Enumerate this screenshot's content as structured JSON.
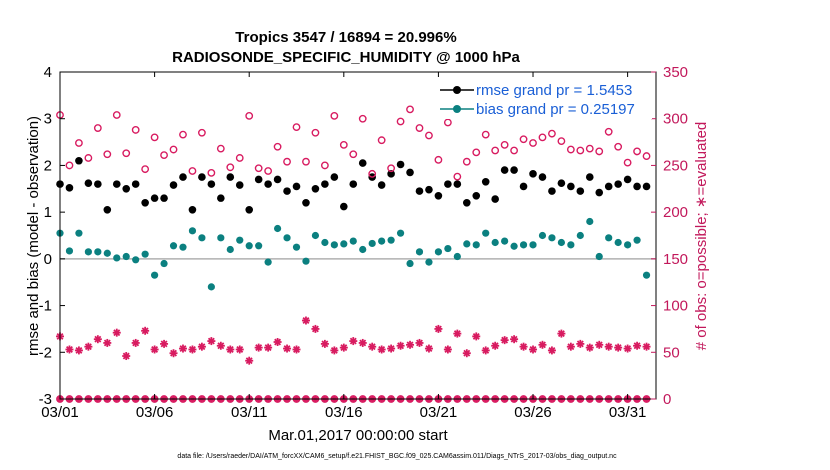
{
  "chart_data": {
    "type": "scatter",
    "title_line1": "Tropics 3547 / 16894 = 20.996%",
    "title_line2": "RADIOSONDE_SPECIFIC_HUMIDITY @ 1000 hPa",
    "xlabel": "Mar.01,2017 00:00:00 start",
    "ylabel_left": "rmse and bias (model - observation)",
    "ylabel_right": "# of obs: o=possible; ∗=evaluated",
    "xlim": [
      0,
      31.5
    ],
    "ylim_left": [
      -3,
      4
    ],
    "ylim_right": [
      0,
      350
    ],
    "x_ticks": [
      0,
      5,
      10,
      15,
      20,
      25,
      30
    ],
    "x_tick_labels": [
      "03/01",
      "03/06",
      "03/11",
      "03/16",
      "03/21",
      "03/26",
      "03/31"
    ],
    "y_left_ticks": [
      -3,
      -2,
      -1,
      0,
      1,
      2,
      3,
      4
    ],
    "y_left_tick_labels": [
      "-3",
      "-2",
      "-1",
      "0",
      "1",
      "2",
      "3",
      "4"
    ],
    "y_right_ticks": [
      0,
      50,
      100,
      150,
      200,
      250,
      300,
      350
    ],
    "y_right_tick_labels": [
      "0",
      "50",
      "100",
      "150",
      "200",
      "250",
      "300",
      "350"
    ],
    "footer": "data file: /Users/raeder/DAI/ATM_forcXX/CAM6_setup/f.e21.FHIST_BGC.f09_025.CAM6assim.011/Diags_NTrS_2017-03/obs_diag_output.nc",
    "legend": [
      {
        "label": "rmse grand pr = 1.5453",
        "color": "#000000"
      },
      {
        "label": "bias grand pr = 0.25197",
        "color": "#0b8080"
      }
    ],
    "colors": {
      "rmse": "#000000",
      "bias": "#0b8080",
      "obs": "#d81b60",
      "zero_line": "#b0b0b0"
    },
    "x": [
      0,
      0.5,
      1,
      1.5,
      2,
      2.5,
      3,
      3.5,
      4,
      4.5,
      5,
      5.5,
      6,
      6.5,
      7,
      7.5,
      8,
      8.5,
      9,
      9.5,
      10,
      10.5,
      11,
      11.5,
      12,
      12.5,
      13,
      13.5,
      14,
      14.5,
      15,
      15.5,
      16,
      16.5,
      17,
      17.5,
      18,
      18.5,
      19,
      19.5,
      20,
      20.5,
      21,
      21.5,
      22,
      22.5,
      23,
      23.5,
      24,
      24.5,
      25,
      25.5,
      26,
      26.5,
      27,
      27.5,
      28,
      28.5,
      29,
      29.5,
      30,
      30.5,
      31
    ],
    "series": [
      {
        "name": "rmse",
        "marker": "filled-circle",
        "values": [
          1.6,
          1.52,
          2.1,
          1.62,
          1.6,
          1.05,
          1.6,
          1.5,
          1.6,
          1.2,
          1.3,
          1.3,
          1.58,
          1.75,
          1.05,
          1.75,
          1.6,
          1.3,
          1.75,
          1.58,
          1.05,
          1.7,
          1.6,
          1.7,
          1.45,
          1.55,
          1.2,
          1.5,
          1.6,
          1.75,
          1.12,
          1.6,
          2.05,
          1.75,
          1.58,
          1.82,
          2.02,
          1.85,
          1.45,
          1.48,
          1.35,
          1.6,
          1.6,
          1.2,
          1.35,
          1.65,
          1.28,
          1.9,
          1.9,
          1.55,
          1.82,
          1.75,
          1.45,
          1.62,
          1.55,
          1.45,
          1.75,
          1.42,
          1.55,
          1.6,
          1.7,
          1.55,
          1.55
        ]
      },
      {
        "name": "bias",
        "marker": "filled-circle",
        "values": [
          0.55,
          0.17,
          0.55,
          0.15,
          0.15,
          0.12,
          0.02,
          0.05,
          -0.02,
          0.1,
          -0.35,
          -0.1,
          0.28,
          0.25,
          0.6,
          0.45,
          -0.6,
          0.45,
          0.2,
          0.4,
          0.28,
          0.28,
          -0.07,
          0.65,
          0.45,
          0.25,
          -0.05,
          0.5,
          0.35,
          0.3,
          0.32,
          0.38,
          0.2,
          0.33,
          0.38,
          0.4,
          0.55,
          -0.1,
          0.15,
          -0.07,
          0.15,
          0.22,
          0.05,
          0.32,
          0.3,
          0.55,
          0.35,
          0.38,
          0.27,
          0.3,
          0.3,
          0.5,
          0.45,
          0.35,
          0.3,
          0.5,
          0.8,
          0.05,
          0.45,
          0.35,
          0.3,
          0.4,
          -0.35
        ]
      },
      {
        "name": "obs_possible",
        "marker": "open-circle",
        "axis": "right",
        "values": [
          304,
          250,
          274,
          258,
          290,
          262,
          304,
          263,
          288,
          246,
          280,
          261,
          267,
          283,
          244,
          285,
          242,
          268,
          248,
          258,
          303,
          247,
          244,
          270,
          254,
          291,
          254,
          285,
          250,
          303,
          272,
          262,
          300,
          241,
          277,
          247,
          297,
          310,
          290,
          282,
          256,
          296,
          238,
          254,
          264,
          283,
          266,
          272,
          266,
          278,
          274,
          280,
          284,
          276,
          267,
          266,
          268,
          265,
          286,
          270,
          253,
          265,
          260
        ]
      },
      {
        "name": "obs_evaluated",
        "marker": "asterisk",
        "axis": "right",
        "values": [
          67,
          53,
          52,
          56,
          64,
          60,
          71,
          46,
          60,
          73,
          53,
          59,
          49,
          54,
          53,
          56,
          62,
          57,
          53,
          53,
          41,
          55,
          55,
          61,
          54,
          53,
          84,
          75,
          59,
          52,
          55,
          62,
          60,
          56,
          53,
          54,
          57,
          58,
          60,
          54,
          75,
          53,
          70,
          49,
          67,
          52,
          57,
          63,
          64,
          56,
          53,
          58,
          52,
          70,
          56,
          59,
          55,
          58,
          56,
          55,
          54,
          57,
          56
        ]
      },
      {
        "name": "obs_zero",
        "marker": "asterisk",
        "axis": "right",
        "values": [
          0,
          0,
          0,
          0,
          0,
          0,
          0,
          0,
          0,
          0,
          0,
          0,
          0,
          0,
          0,
          0,
          0,
          0,
          0,
          0,
          0,
          0,
          0,
          0,
          0,
          0,
          0,
          0,
          0,
          0,
          0,
          0,
          0,
          0,
          0,
          0,
          0,
          0,
          0,
          0,
          0,
          0,
          0,
          0,
          0,
          0,
          0,
          0,
          0,
          0,
          0,
          0,
          0,
          0,
          0,
          0,
          0,
          0,
          0,
          0,
          0,
          0,
          0
        ]
      }
    ]
  }
}
